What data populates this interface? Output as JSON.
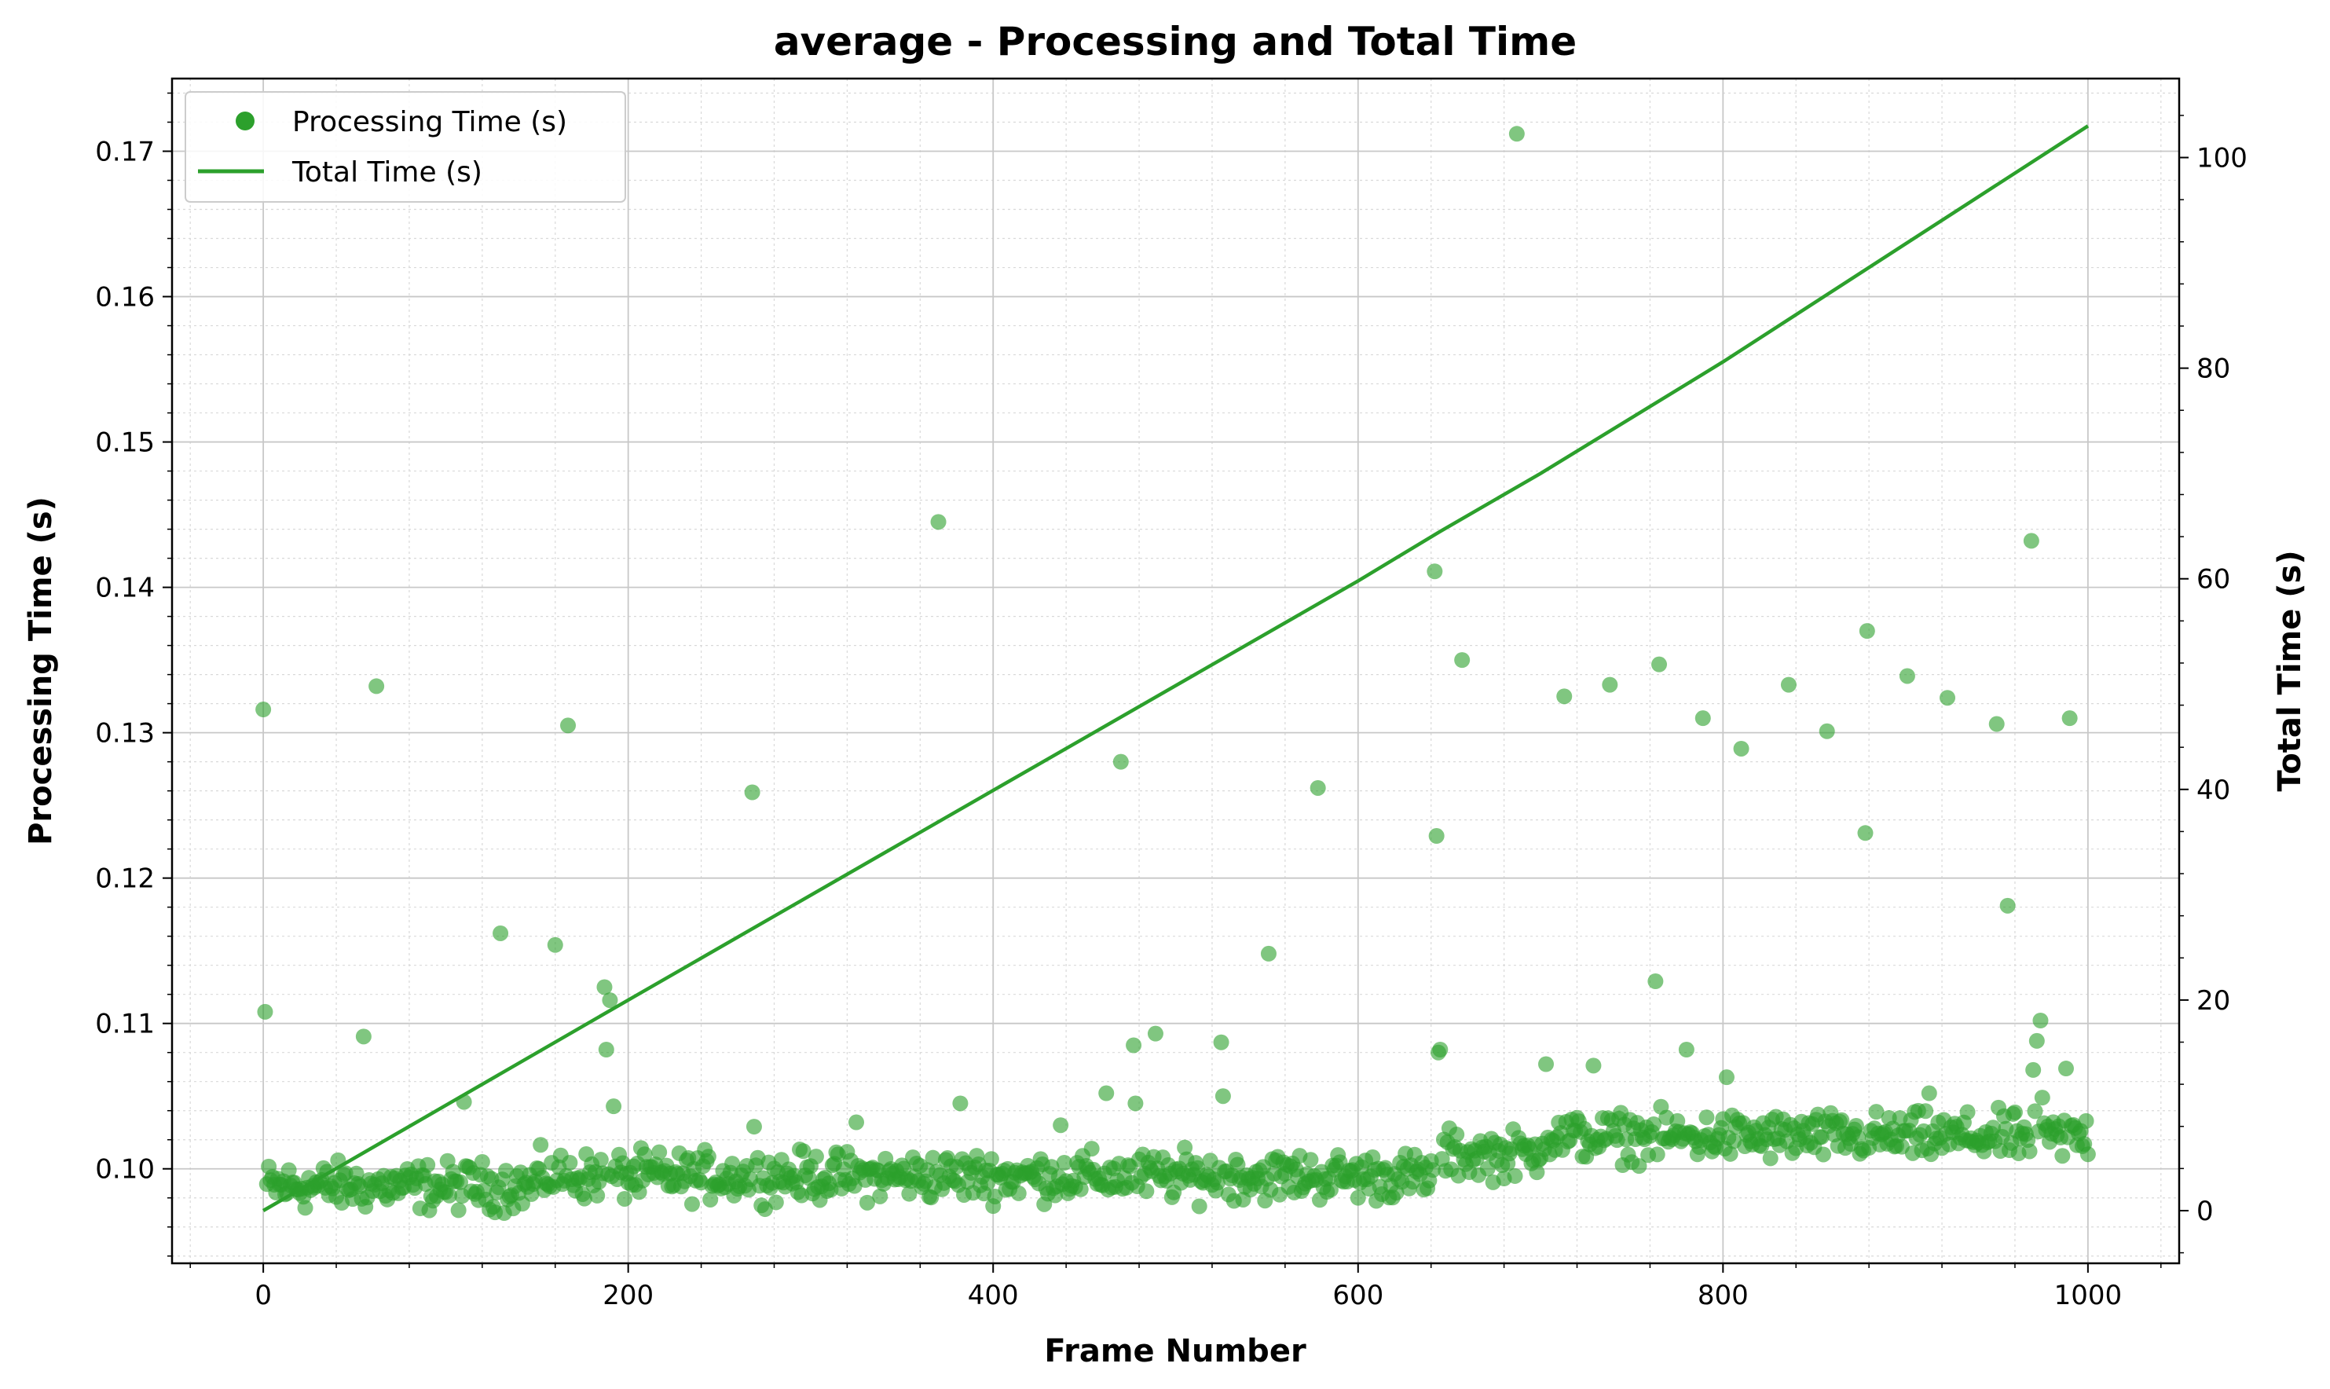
{
  "chart_data": {
    "type": "scatter",
    "title": "average - Processing and Total Time",
    "xlabel": "Frame Number",
    "ylabel": "Processing Time (s)",
    "y2label": "Total Time (s)",
    "xlim": [
      -50,
      1050
    ],
    "ylim": [
      0.0935,
      0.175
    ],
    "y2lim": [
      -5,
      107.5
    ],
    "xticks": [
      "0",
      "200",
      "400",
      "600",
      "800",
      "1000"
    ],
    "yticks": [
      "0.10",
      "0.11",
      "0.12",
      "0.13",
      "0.14",
      "0.15",
      "0.16",
      "0.17"
    ],
    "y2ticks": [
      "0",
      "20",
      "40",
      "60",
      "80",
      "100"
    ],
    "grid": true,
    "legend_position": "top-left",
    "color": "#2ca02c",
    "series": [
      {
        "name": "Processing Time (s)",
        "kind": "scatter",
        "axis": "left",
        "baseline_segments": [
          {
            "x_start": 0,
            "x_end": 150,
            "mean": 0.0988
          },
          {
            "x_start": 150,
            "x_end": 645,
            "mean": 0.0995
          },
          {
            "x_start": 645,
            "x_end": 700,
            "mean": 0.101
          },
          {
            "x_start": 700,
            "x_end": 1000,
            "mean": 0.1022
          }
        ],
        "outliers": [
          {
            "x": 0,
            "y": 0.1316
          },
          {
            "x": 1,
            "y": 0.1108
          },
          {
            "x": 55,
            "y": 0.1091
          },
          {
            "x": 62,
            "y": 0.1332
          },
          {
            "x": 110,
            "y": 0.1046
          },
          {
            "x": 130,
            "y": 0.1162
          },
          {
            "x": 160,
            "y": 0.1154
          },
          {
            "x": 167,
            "y": 0.1305
          },
          {
            "x": 187,
            "y": 0.1125
          },
          {
            "x": 188,
            "y": 0.1082
          },
          {
            "x": 190,
            "y": 0.1116
          },
          {
            "x": 192,
            "y": 0.1043
          },
          {
            "x": 268,
            "y": 0.1259
          },
          {
            "x": 269,
            "y": 0.1029
          },
          {
            "x": 325,
            "y": 0.1032
          },
          {
            "x": 370,
            "y": 0.1445
          },
          {
            "x": 382,
            "y": 0.1045
          },
          {
            "x": 437,
            "y": 0.103
          },
          {
            "x": 462,
            "y": 0.1052
          },
          {
            "x": 470,
            "y": 0.128
          },
          {
            "x": 477,
            "y": 0.1085
          },
          {
            "x": 478,
            "y": 0.1045
          },
          {
            "x": 489,
            "y": 0.1093
          },
          {
            "x": 525,
            "y": 0.1087
          },
          {
            "x": 526,
            "y": 0.105
          },
          {
            "x": 551,
            "y": 0.1148
          },
          {
            "x": 578,
            "y": 0.1262
          },
          {
            "x": 642,
            "y": 0.1411
          },
          {
            "x": 643,
            "y": 0.1229
          },
          {
            "x": 644,
            "y": 0.108
          },
          {
            "x": 645,
            "y": 0.1082
          },
          {
            "x": 657,
            "y": 0.135
          },
          {
            "x": 687,
            "y": 0.1712
          },
          {
            "x": 703,
            "y": 0.1072
          },
          {
            "x": 713,
            "y": 0.1325
          },
          {
            "x": 729,
            "y": 0.1071
          },
          {
            "x": 738,
            "y": 0.1333
          },
          {
            "x": 763,
            "y": 0.1129
          },
          {
            "x": 765,
            "y": 0.1347
          },
          {
            "x": 780,
            "y": 0.1082
          },
          {
            "x": 789,
            "y": 0.131
          },
          {
            "x": 802,
            "y": 0.1063
          },
          {
            "x": 810,
            "y": 0.1289
          },
          {
            "x": 836,
            "y": 0.1333
          },
          {
            "x": 857,
            "y": 0.1301
          },
          {
            "x": 878,
            "y": 0.1231
          },
          {
            "x": 879,
            "y": 0.137
          },
          {
            "x": 901,
            "y": 0.1339
          },
          {
            "x": 913,
            "y": 0.1052
          },
          {
            "x": 923,
            "y": 0.1324
          },
          {
            "x": 950,
            "y": 0.1306
          },
          {
            "x": 956,
            "y": 0.1181
          },
          {
            "x": 969,
            "y": 0.1432
          },
          {
            "x": 970,
            "y": 0.1068
          },
          {
            "x": 972,
            "y": 0.1088
          },
          {
            "x": 974,
            "y": 0.1102
          },
          {
            "x": 975,
            "y": 0.1049
          },
          {
            "x": 988,
            "y": 0.1069
          },
          {
            "x": 990,
            "y": 0.131
          }
        ]
      },
      {
        "name": "Total Time (s)",
        "kind": "line",
        "axis": "right",
        "x": [
          0,
          200,
          400,
          600,
          645,
          700,
          800,
          1000
        ],
        "y": [
          0,
          20.0,
          39.9,
          59.8,
          64.5,
          70.0,
          80.6,
          103.0
        ]
      }
    ]
  }
}
